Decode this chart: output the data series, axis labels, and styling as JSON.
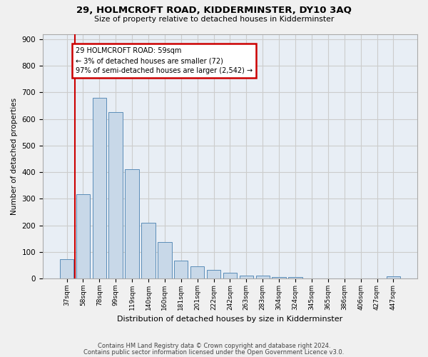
{
  "title": "29, HOLMCROFT ROAD, KIDDERMINSTER, DY10 3AQ",
  "subtitle": "Size of property relative to detached houses in Kidderminster",
  "xlabel": "Distribution of detached houses by size in Kidderminster",
  "ylabel": "Number of detached properties",
  "footer1": "Contains HM Land Registry data © Crown copyright and database right 2024.",
  "footer2": "Contains public sector information licensed under the Open Government Licence v3.0.",
  "categories": [
    "37sqm",
    "58sqm",
    "78sqm",
    "99sqm",
    "119sqm",
    "140sqm",
    "160sqm",
    "181sqm",
    "201sqm",
    "222sqm",
    "242sqm",
    "263sqm",
    "283sqm",
    "304sqm",
    "324sqm",
    "345sqm",
    "365sqm",
    "386sqm",
    "406sqm",
    "427sqm",
    "447sqm"
  ],
  "values": [
    72,
    318,
    680,
    625,
    410,
    210,
    138,
    68,
    46,
    32,
    22,
    12,
    10,
    5,
    5,
    0,
    0,
    0,
    0,
    0,
    8
  ],
  "bar_color": "#c8d8e8",
  "bar_edge_color": "#5b8db8",
  "vline_x": 0.5,
  "vline_color": "#cc0000",
  "annotation_text": "29 HOLMCROFT ROAD: 59sqm\n← 3% of detached houses are smaller (72)\n97% of semi-detached houses are larger (2,542) →",
  "annotation_box_color": "#ffffff",
  "annotation_box_edge": "#cc0000",
  "ylim": [
    0,
    920
  ],
  "yticks": [
    0,
    100,
    200,
    300,
    400,
    500,
    600,
    700,
    800,
    900
  ],
  "grid_color": "#cccccc",
  "bg_color": "#e8eef5",
  "fig_bg_color": "#f0f0f0"
}
